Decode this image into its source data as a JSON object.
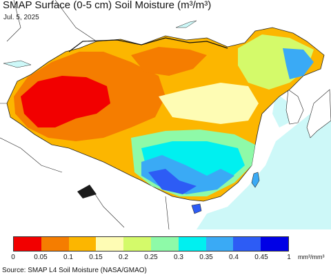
{
  "title": "SMAP Surface (0-5 cm) Soil Moisture (m³/m³)",
  "date": "Jul. 5, 2025",
  "legend": {
    "ticks": [
      "0",
      "0.05",
      "0.1",
      "0.15",
      "0.2",
      "0.25",
      "0.3",
      "0.35",
      "0.4",
      "0.45",
      "1"
    ],
    "unit": "mm³/mm³",
    "colors": [
      "#f20000",
      "#f57d00",
      "#fcb600",
      "#fefcb4",
      "#d4fa6a",
      "#8efaa8",
      "#00f0f0",
      "#3aaaf5",
      "#2d5cf5",
      "#0000e6"
    ]
  },
  "source": "Source: SMAP L4 Soil Moisture (NASA/GMAO)",
  "map": {
    "ocean_color": "#cdf8f8",
    "land_outside_color": "#ffffff",
    "nodata_color": "#ffffff"
  }
}
